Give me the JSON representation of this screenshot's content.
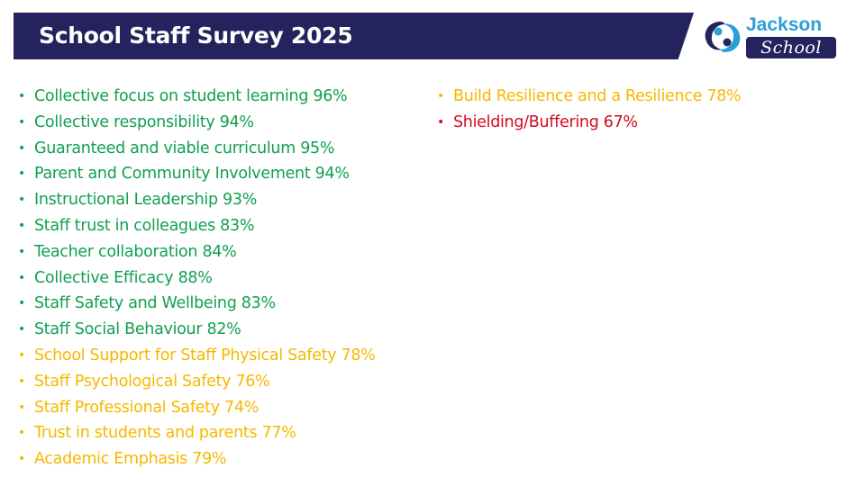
{
  "header": {
    "title": "School Staff Survey 2025",
    "bar_color": "#25235e"
  },
  "logo": {
    "line1": "Jackson",
    "line2": "School",
    "icon": "jackson-school-swirl-icon"
  },
  "status_colors": {
    "green": "#10a050",
    "amber": "#f5b800",
    "red": "#d60a1f"
  },
  "left_items": [
    {
      "text": "Collective focus on student learning 96%",
      "status": "green"
    },
    {
      "text": "Collective responsibility 94%",
      "status": "green"
    },
    {
      "text": "Guaranteed and viable curriculum 95%",
      "status": "green"
    },
    {
      "text": "Parent and Community Involvement 94%",
      "status": "green"
    },
    {
      "text": "Instructional Leadership 93%",
      "status": "green"
    },
    {
      "text": "Staff trust in colleagues 83%",
      "status": "green"
    },
    {
      "text": "Teacher collaboration 84%",
      "status": "green"
    },
    {
      "text": "Collective Efficacy 88%",
      "status": "green"
    },
    {
      "text": "Staff Safety and Wellbeing 83%",
      "status": "green"
    },
    {
      "text": "Staff Social Behaviour 82%",
      "status": "green"
    },
    {
      "text": "School Support for Staff Physical Safety 78%",
      "status": "amber"
    },
    {
      "text": "Staff Psychological Safety 76%",
      "status": "amber"
    },
    {
      "text": "Staff Professional Safety 74%",
      "status": "amber"
    },
    {
      "text": "Trust in students and parents 77%",
      "status": "amber"
    },
    {
      "text": "Academic Emphasis 79%",
      "status": "amber"
    }
  ],
  "right_items": [
    {
      "text": "Build Resilience and a Resilience 78%",
      "status": "amber"
    },
    {
      "text": "Shielding/Buffering 67%",
      "status": "red"
    }
  ]
}
